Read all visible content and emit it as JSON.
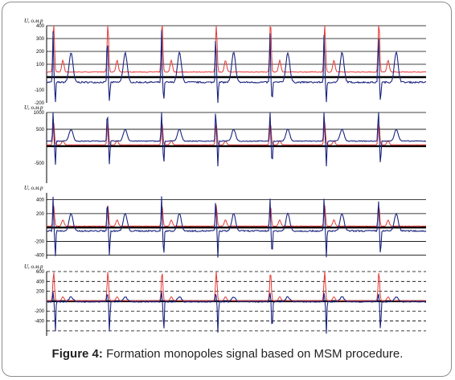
{
  "caption": {
    "label": "Figure 4:",
    "text": "Formation monopoles signal based on MSM procedure."
  },
  "colors": {
    "series_blue": "#1a237e",
    "series_red": "#e53935",
    "grid": "#000000"
  },
  "chart_data": [
    {
      "type": "line",
      "ylabel": "U, о.м.р",
      "yticks": [
        -200,
        -100,
        100,
        200,
        300,
        400
      ],
      "ylim": [
        -200,
        400
      ],
      "solid_lines": [
        400,
        300,
        200,
        100,
        0
      ],
      "thick_line": 0,
      "dashed_lines": [],
      "cycles": 7,
      "blue": {
        "baseline": -40,
        "peak": 400,
        "trough": -200,
        "wave": 230,
        "noise": 12
      },
      "red": {
        "baseline": 40,
        "peak": 440,
        "wave": 90
      },
      "series": [
        {
          "name": "",
          "color": "#1a237e"
        },
        {
          "name": "",
          "color": "#e53935"
        }
      ]
    },
    {
      "type": "line",
      "ylabel": "U, о.м.р",
      "yticks": [
        -500,
        500,
        1000
      ],
      "ylim": [
        -1100,
        1000
      ],
      "solid_lines": [
        1000,
        500,
        0
      ],
      "thick_line": 0,
      "dashed_lines": [],
      "cycles": 7,
      "blue": {
        "baseline": 150,
        "peak": 1000,
        "trough": -600,
        "wave": 350,
        "noise": 25
      },
      "red": {
        "baseline": 40,
        "peak": 700,
        "wave": 120
      },
      "series": [
        {
          "name": "",
          "color": "#1a237e"
        },
        {
          "name": "",
          "color": "#e53935"
        }
      ]
    },
    {
      "type": "line",
      "ylabel": "U, о.м.р",
      "yticks": [
        -400,
        -200,
        200,
        400
      ],
      "ylim": [
        -450,
        500
      ],
      "solid_lines": [
        400,
        200,
        0,
        -200,
        -400
      ],
      "thick_line": 0,
      "dashed_lines": [],
      "cycles": 7,
      "blue": {
        "baseline": -50,
        "peak": 500,
        "trough": -430,
        "wave": 250,
        "noise": 20
      },
      "red": {
        "baseline": 20,
        "peak": 320,
        "wave": 90
      },
      "series": [
        {
          "name": "",
          "color": "#1a237e"
        },
        {
          "name": "",
          "color": "#e53935"
        }
      ]
    },
    {
      "type": "line",
      "ylabel": "U, о.м.р",
      "yticks": [
        -400,
        -200,
        200,
        400,
        600
      ],
      "ylim": [
        -700,
        600
      ],
      "solid_lines": [
        0
      ],
      "thick_line": 0,
      "dashed_lines": [
        600,
        400,
        200,
        -200,
        -400,
        -600
      ],
      "cycles": 7,
      "blue": {
        "baseline": -10,
        "peak": 200,
        "trough": -650,
        "wave": 100,
        "noise": 25
      },
      "red": {
        "baseline": 10,
        "peak": 600,
        "wave": 80
      },
      "series": [
        {
          "name": "",
          "color": "#1a237e"
        },
        {
          "name": "",
          "color": "#e53935"
        }
      ]
    }
  ]
}
